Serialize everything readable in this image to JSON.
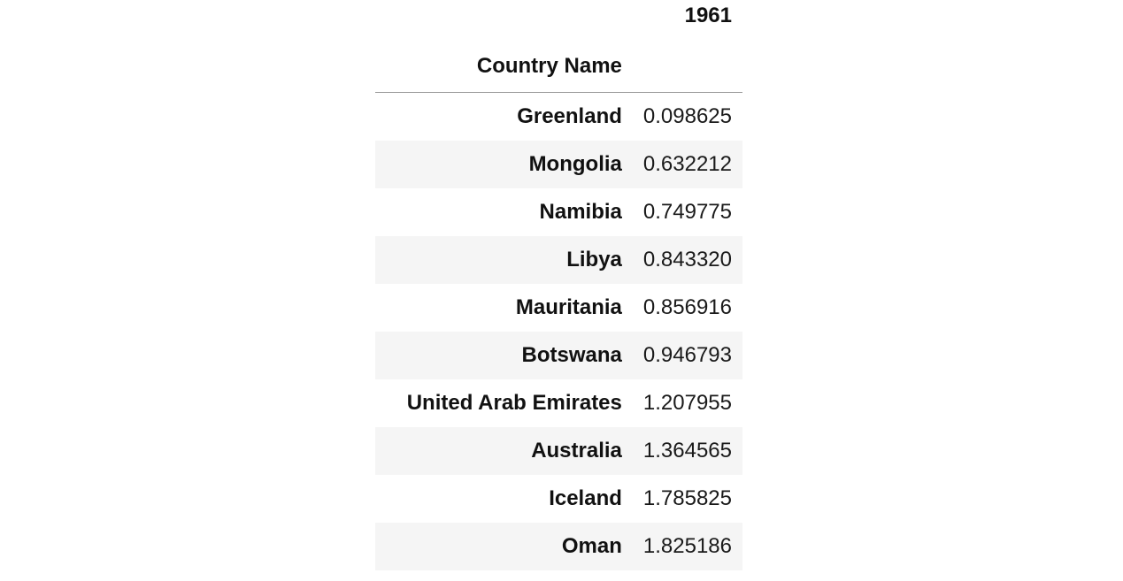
{
  "table": {
    "column_header": "1961",
    "index_name": "Country Name",
    "rows": [
      {
        "country": "Greenland",
        "value": "0.098625"
      },
      {
        "country": "Mongolia",
        "value": "0.632212"
      },
      {
        "country": "Namibia",
        "value": "0.749775"
      },
      {
        "country": "Libya",
        "value": "0.843320"
      },
      {
        "country": "Mauritania",
        "value": "0.856916"
      },
      {
        "country": "Botswana",
        "value": "0.946793"
      },
      {
        "country": "United Arab Emirates",
        "value": "1.207955"
      },
      {
        "country": "Australia",
        "value": "1.364565"
      },
      {
        "country": "Iceland",
        "value": "1.785825"
      },
      {
        "country": "Oman",
        "value": "1.825186"
      }
    ]
  },
  "colors": {
    "background": "#ffffff",
    "stripe": "#f5f5f5",
    "text": "#111111",
    "header_rule": "#9a9a9a"
  }
}
